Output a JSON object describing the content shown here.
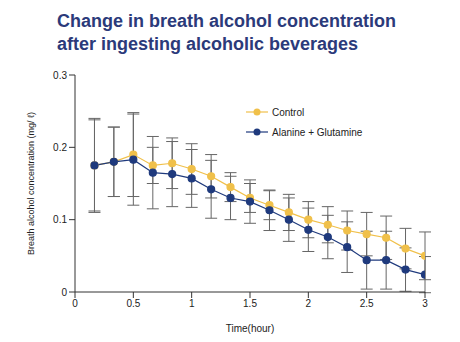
{
  "chart_data": {
    "type": "line",
    "title": "Change in breath alcohol concentration\nafter ingesting alcoholic beverages",
    "x_label": "Time(hour)",
    "y_label": "Breath alcohol concentration (mg/ ℓ)",
    "x": [
      0.167,
      0.333,
      0.5,
      0.667,
      0.833,
      1.0,
      1.167,
      1.333,
      1.5,
      1.667,
      1.833,
      2.0,
      2.167,
      2.333,
      2.5,
      2.667,
      2.833,
      3.0
    ],
    "series": [
      {
        "name": "Control",
        "color": "#f0c04a",
        "marker": "circle",
        "line_style": "solid",
        "values": [
          0.175,
          0.18,
          0.19,
          0.175,
          0.178,
          0.17,
          0.16,
          0.145,
          0.13,
          0.12,
          0.11,
          0.1,
          0.093,
          0.085,
          0.08,
          0.075,
          0.06,
          0.05
        ],
        "errors": [
          0.065,
          0.048,
          0.058,
          0.025,
          0.035,
          0.035,
          0.03,
          0.02,
          0.02,
          0.02,
          0.025,
          0.025,
          0.025,
          0.027,
          0.03,
          0.03,
          0.028,
          0.033
        ]
      },
      {
        "name": "Alanine + Glutamine",
        "color": "#1f3a7d",
        "marker": "circle",
        "line_style": "solid",
        "values": [
          0.175,
          0.18,
          0.183,
          0.165,
          0.163,
          0.157,
          0.142,
          0.13,
          0.125,
          0.113,
          0.1,
          0.086,
          0.076,
          0.062,
          0.044,
          0.044,
          0.031,
          0.024
        ],
        "errors": [
          0.063,
          0.048,
          0.063,
          0.05,
          0.045,
          0.04,
          0.04,
          0.03,
          0.03,
          0.028,
          0.03,
          0.03,
          0.03,
          0.035,
          0.04,
          0.04,
          0.03,
          0.025
        ]
      }
    ],
    "xlim": [
      0,
      3
    ],
    "xticks": [
      0,
      0.5,
      1,
      1.5,
      2,
      2.5,
      3
    ],
    "ylim": [
      0,
      0.3
    ],
    "yticks": [
      0,
      0.1,
      0.2,
      0.3
    ],
    "grid": false,
    "legend": "upper right"
  }
}
